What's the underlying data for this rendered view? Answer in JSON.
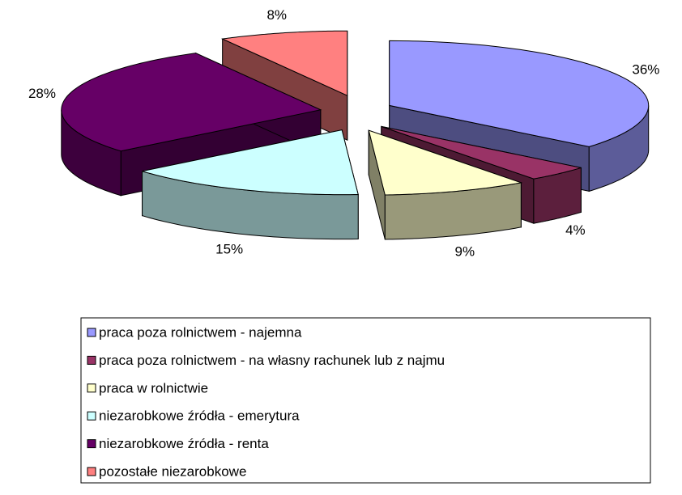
{
  "chart_data": {
    "type": "pie3d",
    "categories": [
      "praca poza rolnictwem - najemna",
      "praca poza rolnictwem - na własny rachunek lub z najmu",
      "praca w rolnictwie",
      "niezarobkowe źródła - emerytura",
      "niezarobkowe źródła - renta",
      "pozostałe niezarobkowe"
    ],
    "values": [
      36,
      4,
      9,
      15,
      28,
      8
    ],
    "value_labels": [
      "36%",
      "4%",
      "9%",
      "15%",
      "28%",
      "8%"
    ],
    "colors": [
      "#9999ff",
      "#993366",
      "#ffffcc",
      "#ccffff",
      "#660066",
      "#ff8080"
    ],
    "legend": "bottom"
  }
}
